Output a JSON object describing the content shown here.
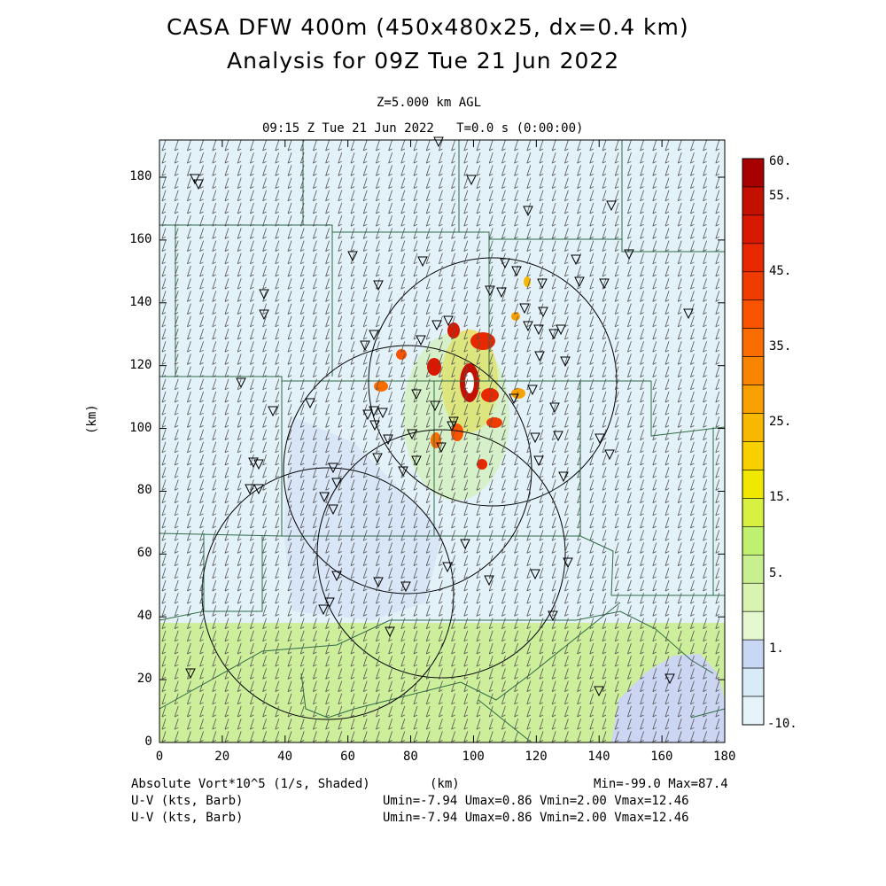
{
  "header": {
    "title_line1": "CASA DFW 400m (450x480x25, dx=0.4 km)",
    "title_line2": "Analysis for 09Z Tue 21 Jun 2022",
    "level": "Z=5.000 km AGL",
    "valid_time": "09:15 Z Tue 21 Jun 2022   T=0.0 s (0:00:00)"
  },
  "axes": {
    "x_ticks": [
      "0",
      "20",
      "40",
      "60",
      "80",
      "100",
      "120",
      "140",
      "160",
      "180"
    ],
    "y_ticks": [
      "0",
      "20",
      "40",
      "60",
      "80",
      "100",
      "120",
      "140",
      "160",
      "180"
    ],
    "x_label": "(km)",
    "y_label": "(km)"
  },
  "colorbar": {
    "labels": [
      "60.",
      "55.",
      "45.",
      "35.",
      "25.",
      "15.",
      "5.",
      "1.",
      "-10."
    ],
    "colors": [
      "#a80000",
      "#c41000",
      "#d81800",
      "#e82800",
      "#f03c00",
      "#f85400",
      "#f86c00",
      "#f88400",
      "#f8a000",
      "#f8b800",
      "#f8d000",
      "#f0e800",
      "#d8f040",
      "#c0f070",
      "#c8f090",
      "#d8f4b0",
      "#e6f8d0",
      "#c8d8f4",
      "#d8ecf8",
      "#e6f4fa"
    ]
  },
  "footer": {
    "field": "Absolute Vort*10^5 (1/s, Shaded)",
    "xunit": "(km)",
    "minmax": "Min=-99.0 Max=87.4",
    "wind1": "U-V (kts, Barb)",
    "wind2": "U-V (kts, Barb)",
    "stats1": "Umin=-7.94 Umax=0.86 Vmin=2.00 Vmax=12.46",
    "stats2": "Umin=-7.94 Umax=0.86 Vmin=2.00 Vmax=12.46"
  },
  "map_colors": {
    "background": "#e2f2f8",
    "green_region": "#cdee9a",
    "blue_region": "#ccd6f2",
    "county_lines": "#2f6b47"
  }
}
